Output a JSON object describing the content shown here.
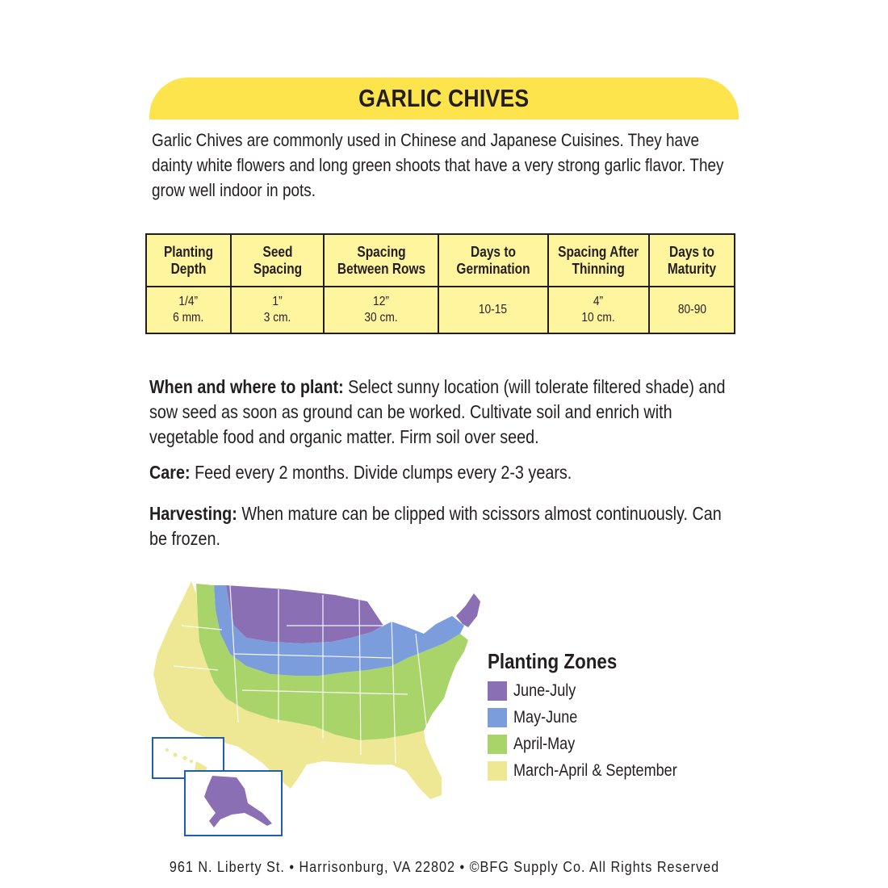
{
  "title": "GARLIC CHIVES",
  "intro": "Garlic Chives are commonly used in Chinese and Japanese Cuisines.  They have dainty white flowers and long green shoots that have a very strong garlic flavor. They grow well indoor in pots.",
  "table": {
    "headers": [
      "Planting\nDepth",
      "Seed\nSpacing",
      "Spacing\nBetween Rows",
      "Days to\nGermination",
      "Spacing After\nThinning",
      "Days to\nMaturity"
    ],
    "values": [
      "1/4”\n6 mm.",
      "1”\n3 cm.",
      "12”\n30 cm.",
      "10-15",
      "4”\n10 cm.",
      "80-90"
    ]
  },
  "sections": {
    "when_label": "When and where to plant:",
    "when_text": " Select sunny location (will tolerate filtered shade) and sow seed as soon as ground can be worked. Cultivate soil and enrich with vegetable food and organic matter. Firm soil over seed.",
    "care_label": "Care:",
    "care_text": " Feed every 2 months. Divide clumps every 2-3 years.",
    "harvest_label": "Harvesting:",
    "harvest_text": " When mature can be clipped with scissors almost continuously. Can be frozen."
  },
  "legend": {
    "title": "Planting Zones",
    "items": [
      {
        "label": "June-July",
        "color": "#8b6fb5"
      },
      {
        "label": "May-June",
        "color": "#7b9ddc"
      },
      {
        "label": "April-May",
        "color": "#a8d46a"
      },
      {
        "label": "March-April & September",
        "color": "#eee793"
      }
    ]
  },
  "colors": {
    "banner": "#fde44c",
    "table_fill": "#fff59f",
    "inset_border": "#1f5fb0"
  },
  "footer": "961 N. Liberty St. • Harrisonburg, VA 22802 • ©BFG Supply Co. All Rights Reserved"
}
